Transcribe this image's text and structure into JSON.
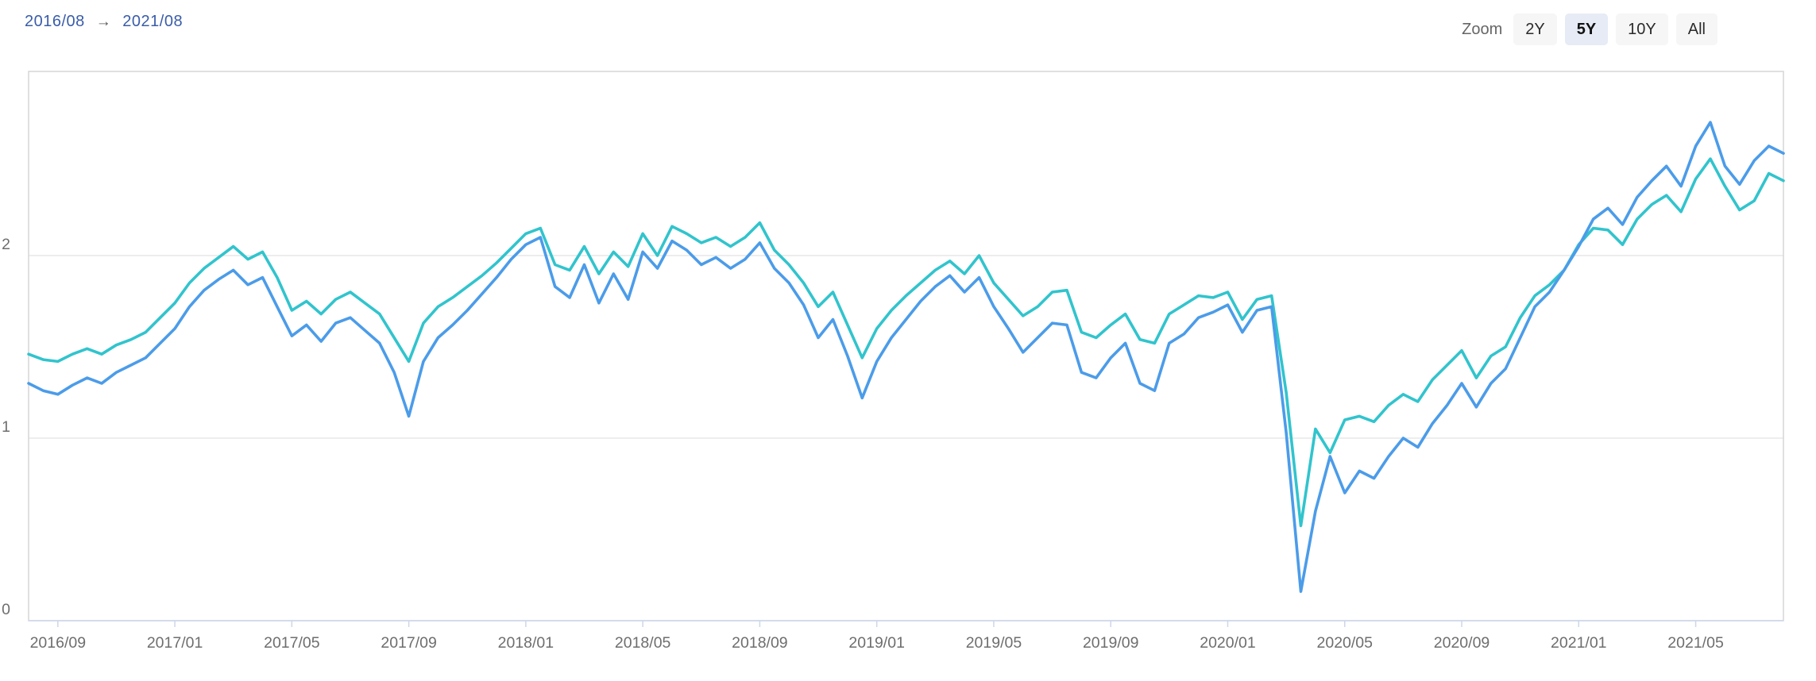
{
  "header": {
    "range_start": "2016/08",
    "range_end": "2021/08",
    "arrow": "→",
    "zoom_label": "Zoom",
    "zoom_buttons": [
      {
        "label": "2Y",
        "active": false
      },
      {
        "label": "5Y",
        "active": true
      },
      {
        "label": "10Y",
        "active": false
      },
      {
        "label": "All",
        "active": false
      }
    ]
  },
  "colors": {
    "range_text": "#3a5ca9",
    "axis_label_text": "#6e6e6e",
    "grid_line": "#e7e7e7",
    "plot_border": "#d6d6d6",
    "axis_line": "#ccd6eb",
    "button_bg": "#f6f6f7",
    "button_active_bg": "#e6ebf5",
    "series_blue": "#4b9ce9",
    "series_cyan": "#31c4cd"
  },
  "chart_data": {
    "type": "line",
    "title": "",
    "xlabel": "",
    "ylabel": "",
    "x_range_start": "2016/08",
    "x_range_end": "2021/08",
    "months_span": 60,
    "points_per_month": 2,
    "grid": true,
    "legend": "none",
    "ylim": [
      0,
      3.01
    ],
    "y_ticks": [
      {
        "label": "2",
        "value": 2
      },
      {
        "label": "1",
        "value": 1
      },
      {
        "label": "0",
        "value": 0
      }
    ],
    "x_ticks": [
      {
        "label": "2016/09",
        "month": 1
      },
      {
        "label": "2017/01",
        "month": 5
      },
      {
        "label": "2017/05",
        "month": 9
      },
      {
        "label": "2017/09",
        "month": 13
      },
      {
        "label": "2018/01",
        "month": 17
      },
      {
        "label": "2018/05",
        "month": 21
      },
      {
        "label": "2018/09",
        "month": 25
      },
      {
        "label": "2019/01",
        "month": 29
      },
      {
        "label": "2019/05",
        "month": 33
      },
      {
        "label": "2019/09",
        "month": 37
      },
      {
        "label": "2020/01",
        "month": 41
      },
      {
        "label": "2020/05",
        "month": 45
      },
      {
        "label": "2020/09",
        "month": 49
      },
      {
        "label": "2021/01",
        "month": 53
      },
      {
        "label": "2021/05",
        "month": 57
      }
    ],
    "series": [
      {
        "name": "cyan-line",
        "color": "#31c4cd",
        "values": [
          1.46,
          1.43,
          1.42,
          1.46,
          1.49,
          1.46,
          1.51,
          1.54,
          1.58,
          1.66,
          1.74,
          1.85,
          1.93,
          1.99,
          2.05,
          1.98,
          2.02,
          1.88,
          1.7,
          1.75,
          1.68,
          1.76,
          1.8,
          1.74,
          1.68,
          1.55,
          1.42,
          1.63,
          1.72,
          1.77,
          1.83,
          1.89,
          1.96,
          2.04,
          2.12,
          2.15,
          1.95,
          1.92,
          2.05,
          1.9,
          2.02,
          1.94,
          2.12,
          2.0,
          2.16,
          2.12,
          2.07,
          2.1,
          2.05,
          2.1,
          2.18,
          2.03,
          1.95,
          1.85,
          1.72,
          1.8,
          1.62,
          1.44,
          1.6,
          1.7,
          1.78,
          1.85,
          1.92,
          1.97,
          1.9,
          2.0,
          1.85,
          1.76,
          1.67,
          1.72,
          1.8,
          1.81,
          1.58,
          1.55,
          1.62,
          1.68,
          1.54,
          1.52,
          1.68,
          1.73,
          1.78,
          1.77,
          1.8,
          1.65,
          1.76,
          1.78,
          1.25,
          0.52,
          1.05,
          0.92,
          1.1,
          1.12,
          1.09,
          1.18,
          1.24,
          1.2,
          1.32,
          1.4,
          1.48,
          1.33,
          1.45,
          1.5,
          1.66,
          1.78,
          1.84,
          1.92,
          2.06,
          2.15,
          2.14,
          2.06,
          2.2,
          2.28,
          2.33,
          2.24,
          2.42,
          2.53,
          2.38,
          2.25,
          2.3,
          2.45,
          2.41
        ]
      },
      {
        "name": "blue-line",
        "color": "#4b9ce9",
        "values": [
          1.3,
          1.26,
          1.24,
          1.29,
          1.33,
          1.3,
          1.36,
          1.4,
          1.44,
          1.52,
          1.6,
          1.72,
          1.81,
          1.87,
          1.92,
          1.84,
          1.88,
          1.72,
          1.56,
          1.62,
          1.53,
          1.63,
          1.66,
          1.59,
          1.52,
          1.36,
          1.12,
          1.42,
          1.55,
          1.62,
          1.7,
          1.79,
          1.88,
          1.98,
          2.06,
          2.1,
          1.83,
          1.77,
          1.95,
          1.74,
          1.9,
          1.76,
          2.02,
          1.93,
          2.08,
          2.03,
          1.95,
          1.99,
          1.93,
          1.98,
          2.07,
          1.93,
          1.85,
          1.73,
          1.55,
          1.65,
          1.45,
          1.22,
          1.42,
          1.55,
          1.65,
          1.75,
          1.83,
          1.89,
          1.8,
          1.88,
          1.72,
          1.6,
          1.47,
          1.55,
          1.63,
          1.62,
          1.36,
          1.33,
          1.44,
          1.52,
          1.3,
          1.26,
          1.52,
          1.57,
          1.66,
          1.69,
          1.73,
          1.58,
          1.7,
          1.72,
          1.03,
          0.16,
          0.6,
          0.9,
          0.7,
          0.82,
          0.78,
          0.9,
          1.0,
          0.95,
          1.08,
          1.18,
          1.3,
          1.17,
          1.3,
          1.38,
          1.55,
          1.72,
          1.8,
          1.92,
          2.05,
          2.2,
          2.26,
          2.17,
          2.32,
          2.41,
          2.49,
          2.38,
          2.6,
          2.73,
          2.49,
          2.39,
          2.52,
          2.6,
          2.56
        ]
      }
    ]
  }
}
